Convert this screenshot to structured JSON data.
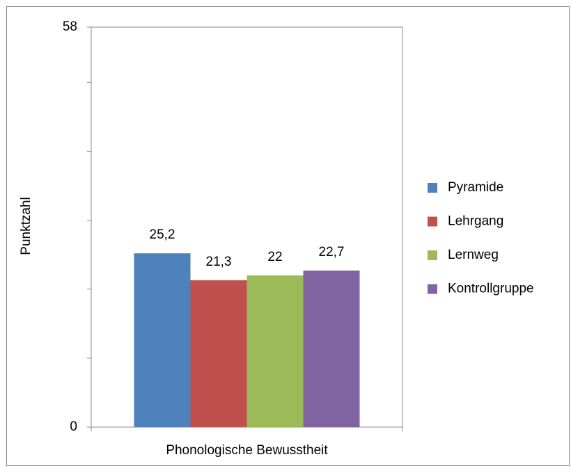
{
  "chart_data": {
    "type": "bar",
    "y_axis_label": "Punktzahl",
    "categories": [
      "Phonologische Bewusstheit"
    ],
    "series": [
      {
        "name": "Pyramide",
        "color": "#4f81bd",
        "values": [
          25.2
        ],
        "value_labels": [
          "25,2"
        ]
      },
      {
        "name": "Lehrgang",
        "color": "#c0504d",
        "values": [
          21.3
        ],
        "value_labels": [
          "21,3"
        ]
      },
      {
        "name": "Lernweg",
        "color": "#9bbb59",
        "values": [
          22
        ],
        "value_labels": [
          "22"
        ]
      },
      {
        "name": "Kontrollgruppe",
        "color": "#8064a2",
        "values": [
          22.7
        ],
        "value_labels": [
          "22,7"
        ]
      }
    ],
    "ylim": [
      0,
      58
    ],
    "yticks": [
      0,
      58
    ],
    "yminor_ticks": [
      10,
      20,
      30,
      40,
      50
    ],
    "legend": "right"
  }
}
